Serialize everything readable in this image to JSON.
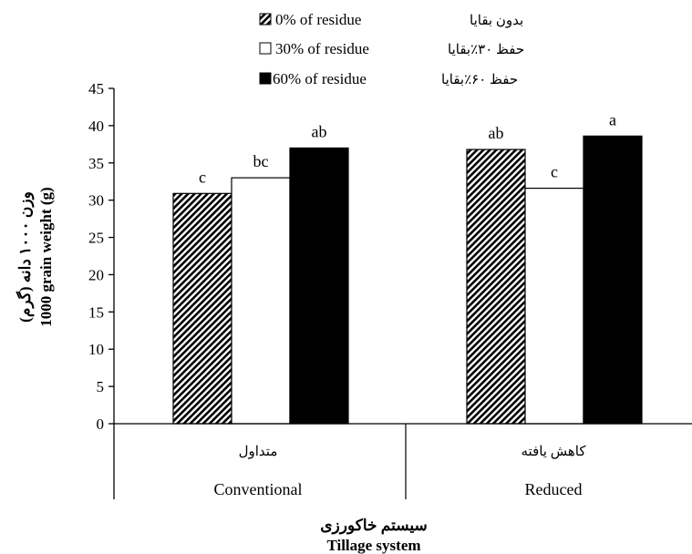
{
  "chart_data": {
    "type": "bar",
    "categories": [
      {
        "fa": "متداول",
        "en": "Conventional"
      },
      {
        "fa": "کاهش یافته",
        "en": "Reduced"
      }
    ],
    "series": [
      {
        "name": "0% of residue",
        "name_fa": "بدون بقایا",
        "pattern": "hatch",
        "values": [
          30.9,
          36.8
        ],
        "labels": [
          "c",
          "ab"
        ]
      },
      {
        "name": "30% of residue",
        "name_fa": "حفظ ۳۰٪بقایا",
        "pattern": "white",
        "values": [
          33.0,
          31.6
        ],
        "labels": [
          "bc",
          "c"
        ]
      },
      {
        "name": "60% of residue",
        "name_fa": "حفظ ۶۰٪بقایا",
        "pattern": "black",
        "values": [
          37.0,
          38.6
        ],
        "labels": [
          "ab",
          "a"
        ]
      }
    ],
    "ylim": [
      0,
      45
    ],
    "yticks": [
      "0",
      "5",
      "10",
      "15",
      "20",
      "25",
      "30",
      "35",
      "40",
      "45"
    ],
    "ylabel_fa": "وزن ۱۰۰۰ دانه (گرم)",
    "ylabel_en": "1000 grain weight (g)",
    "xlabel_fa": "سیستم خاکورزی",
    "xlabel_en": "Tillage system",
    "legend_position": "top",
    "grid": false
  }
}
